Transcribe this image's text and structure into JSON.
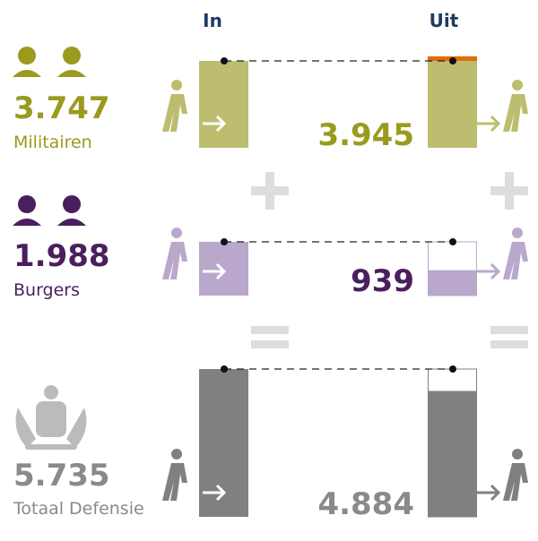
{
  "chart_data": {
    "type": "bar",
    "categories": [
      "In",
      "Uit"
    ],
    "series": [
      {
        "name": "Militairen",
        "color": "#bcbd6e",
        "text_color": "#9a9a1e",
        "values": [
          3747,
          3945
        ],
        "value_labels": [
          "3.747",
          "3.945"
        ]
      },
      {
        "name": "Burgers",
        "color": "#b9a8cc",
        "text_color": "#4a1f5e",
        "values": [
          1988,
          939
        ],
        "value_labels": [
          "1.988",
          "939"
        ]
      },
      {
        "name": "Totaal Defensie",
        "color": "#808080",
        "text_color": "#8a8a8a",
        "values": [
          5735,
          4884
        ],
        "value_labels": [
          "5.735",
          "4.884"
        ]
      }
    ],
    "excess_color": "#e36c0a"
  }
}
